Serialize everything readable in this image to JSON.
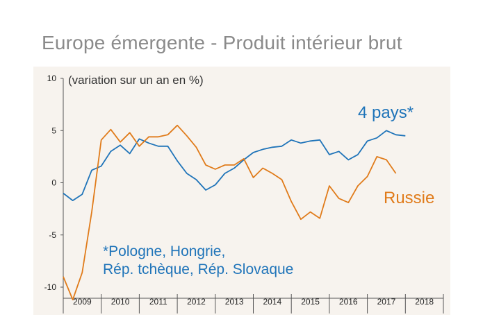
{
  "title": "Europe émergente - Produit intérieur brut",
  "chart_data": {
    "type": "line",
    "ylabel": "(variation sur un an en %)",
    "ylim": [
      -10,
      10
    ],
    "yticks": [
      10,
      5,
      0,
      -5,
      -10
    ],
    "xlim": [
      2008.0,
      2018.0
    ],
    "xtick_labels": [
      "2009",
      "2010",
      "2011",
      "2012",
      "2013",
      "2014",
      "2015",
      "2016",
      "2017",
      "2018"
    ],
    "grid": false,
    "note": {
      "lines": [
        "*Pologne, Hongrie,",
        "Rép. tchèque, Rép. Slovaque"
      ]
    },
    "series": [
      {
        "name": "4 pays*",
        "color": "#1f74b9",
        "x": [
          2008.0,
          2008.25,
          2008.5,
          2008.75,
          2009.0,
          2009.25,
          2009.5,
          2009.75,
          2010.0,
          2010.25,
          2010.5,
          2010.75,
          2011.0,
          2011.25,
          2011.5,
          2011.75,
          2012.0,
          2012.25,
          2012.5,
          2012.75,
          2013.0,
          2013.25,
          2013.5,
          2013.75,
          2014.0,
          2014.25,
          2014.5,
          2014.75,
          2015.0,
          2015.25,
          2015.5,
          2015.75,
          2016.0,
          2016.25,
          2016.5,
          2016.75,
          2017.0,
          2017.25,
          2017.5
        ],
        "y": [
          -1.0,
          -1.7,
          -1.1,
          1.2,
          1.6,
          3.0,
          3.6,
          2.8,
          4.2,
          3.8,
          3.5,
          3.5,
          2.1,
          0.9,
          0.3,
          -0.7,
          -0.2,
          0.9,
          1.4,
          2.2,
          2.9,
          3.2,
          3.4,
          3.5,
          4.1,
          3.8,
          4.0,
          4.1,
          2.7,
          3.0,
          2.2,
          2.7,
          4.0,
          4.3,
          5.0,
          4.6,
          4.5,
          null,
          null
        ]
      },
      {
        "name": "Russie",
        "color": "#e07b1a",
        "x": [
          2008.0,
          2008.25,
          2008.5,
          2008.75,
          2009.0,
          2009.25,
          2009.5,
          2009.75,
          2010.0,
          2010.25,
          2010.5,
          2010.75,
          2011.0,
          2011.25,
          2011.5,
          2011.75,
          2012.0,
          2012.25,
          2012.5,
          2012.75,
          2013.0,
          2013.25,
          2013.5,
          2013.75,
          2014.0,
          2014.25,
          2014.5,
          2014.75,
          2015.0,
          2015.25,
          2015.5,
          2015.75,
          2016.0,
          2016.25,
          2016.5,
          2016.75
        ],
        "y": [
          -9.0,
          -11.2,
          -8.6,
          -2.8,
          4.1,
          5.1,
          3.9,
          4.8,
          3.5,
          4.4,
          4.4,
          4.6,
          5.5,
          4.5,
          3.4,
          1.7,
          1.3,
          1.7,
          1.7,
          2.3,
          0.5,
          1.4,
          0.9,
          0.3,
          -1.8,
          -3.5,
          -2.8,
          -3.4,
          -0.3,
          -1.5,
          -1.9,
          -0.3,
          0.6,
          2.5,
          2.2,
          0.9
        ]
      }
    ]
  }
}
